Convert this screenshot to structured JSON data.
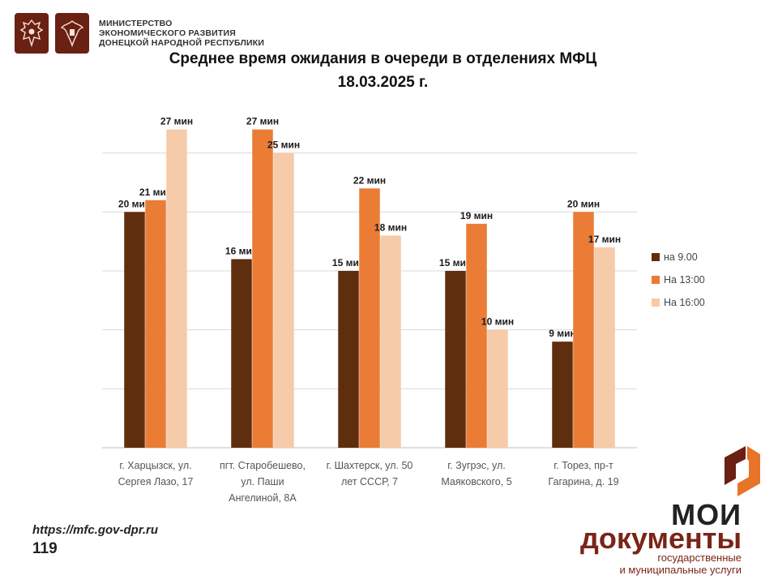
{
  "header": {
    "ministry_lines": [
      "МИНИСТЕРСТВО",
      "ЭКОНОМИЧЕСКОГО РАЗВИТИЯ",
      "ДОНЕЦКОЙ НАРОДНОЙ РЕСПУБЛИКИ"
    ]
  },
  "title_line1": "Среднее время ожидания в очереди в отделениях МФЦ",
  "title_line2": "18.03.2025   г.",
  "footer": {
    "url": "https://mfc.gov-dpr.ru",
    "page": "119"
  },
  "brand": {
    "line1": "МОИ",
    "line2": "документы",
    "sub_line1": "государственные",
    "sub_line2": "и муниципальные услуги"
  },
  "colors": {
    "brand_dark": "#6b2014",
    "brand_orange": "#e8742a"
  },
  "chart_data": {
    "type": "bar",
    "title": "Среднее время ожидания в очереди в отделениях МФЦ",
    "ylim": [
      0,
      30
    ],
    "grid": true,
    "legend_position": "right",
    "categories": [
      [
        "г. Харцызск, ул.",
        "Сергея Лазо, 17"
      ],
      [
        "пгт. Старобешево,",
        "ул. Паши",
        "Ангелиной, 8А"
      ],
      [
        "г. Шахтерск, ул. 50",
        "лет СССР, 7"
      ],
      [
        "г. Зугрэс, ул.",
        "Маяковского, 5"
      ],
      [
        "г. Торез, пр-т",
        "Гагарина, д. 19"
      ]
    ],
    "series": [
      {
        "name": "на 9.00",
        "color": "#5f2e0e",
        "values": [
          20,
          16,
          15,
          15,
          9
        ],
        "labels": [
          "20 мин",
          "16 мин",
          "15 мин",
          "15 мин",
          "9 мин"
        ]
      },
      {
        "name": "На 13:00",
        "color": "#ea7c36",
        "values": [
          21,
          27,
          22,
          19,
          20
        ],
        "labels": [
          "21 мин",
          "27 мин",
          "22 мин",
          "19 мин",
          "20 мин"
        ]
      },
      {
        "name": "На 16:00",
        "color": "#f6cbaa",
        "values": [
          27,
          25,
          18,
          10,
          17
        ],
        "labels": [
          "27 мин",
          "25 мин",
          "18 мин",
          "10 мин",
          "17 мин"
        ]
      }
    ]
  }
}
